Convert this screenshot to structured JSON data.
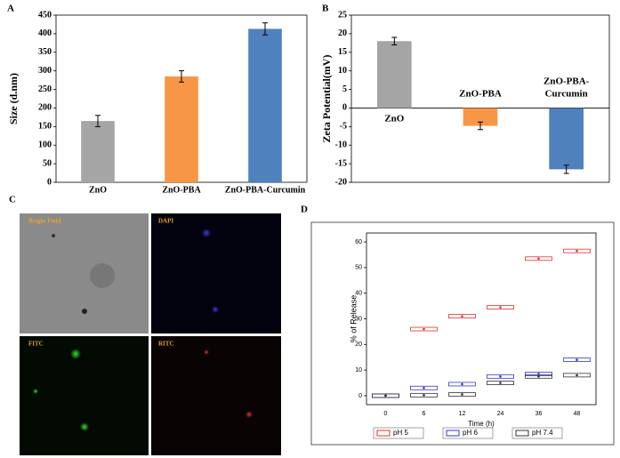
{
  "chart_data": [
    {
      "type": "bar",
      "panel_label": "A",
      "ylabel": "Size (d.nm)",
      "categories": [
        "ZnO",
        "ZnO-PBA",
        "ZnO-PBA-Curcumin"
      ],
      "values": [
        165,
        285,
        413
      ],
      "errors": [
        8,
        8,
        9
      ],
      "colors": [
        "#a5a5a5",
        "#f79646",
        "#4f81bd"
      ],
      "ylim": [
        0,
        450
      ],
      "yticks": [
        0,
        50,
        100,
        150,
        200,
        250,
        300,
        350,
        400,
        450
      ]
    },
    {
      "type": "bar",
      "panel_label": "B",
      "ylabel": "Zeta Potential(mV)",
      "categories": [
        "ZnO",
        "ZnO-PBA",
        "ZnO-PBA-Curcumin"
      ],
      "values": [
        18,
        -4.8,
        -16.5
      ],
      "errors": [
        0.3,
        0.3,
        0.4
      ],
      "colors": [
        "#a5a5a5",
        "#f79646",
        "#4f81bd"
      ],
      "ylim": [
        -20,
        25
      ],
      "yticks": [
        -20,
        -15,
        -10,
        -5,
        0,
        5,
        10,
        15,
        20,
        25
      ]
    },
    {
      "type": "dot",
      "panel_label": "D",
      "xlabel": "Time (h)",
      "ylabel": "% of Release",
      "categories": [
        "0",
        "6",
        "12",
        "24",
        "36",
        "48"
      ],
      "series": [
        {
          "name": "pH 5",
          "color": "#e03030",
          "values": [
            0,
            26,
            31,
            34.5,
            53.5,
            56.5
          ]
        },
        {
          "name": "pH 6",
          "color": "#3535d0",
          "values": [
            0,
            3,
            4.5,
            7.5,
            8.5,
            14
          ]
        },
        {
          "name": "pH 7.4",
          "color": "#333333",
          "values": [
            0,
            0.2,
            0.5,
            5,
            7.5,
            8
          ]
        }
      ],
      "ylim": [
        -3.5,
        63.5
      ],
      "yticks": [
        0,
        10,
        20,
        30,
        40,
        50,
        60
      ]
    }
  ],
  "image_panel": {
    "panel_label": "C",
    "images": [
      "Bright Field",
      "DAPI",
      "FITC",
      "RITC"
    ]
  }
}
